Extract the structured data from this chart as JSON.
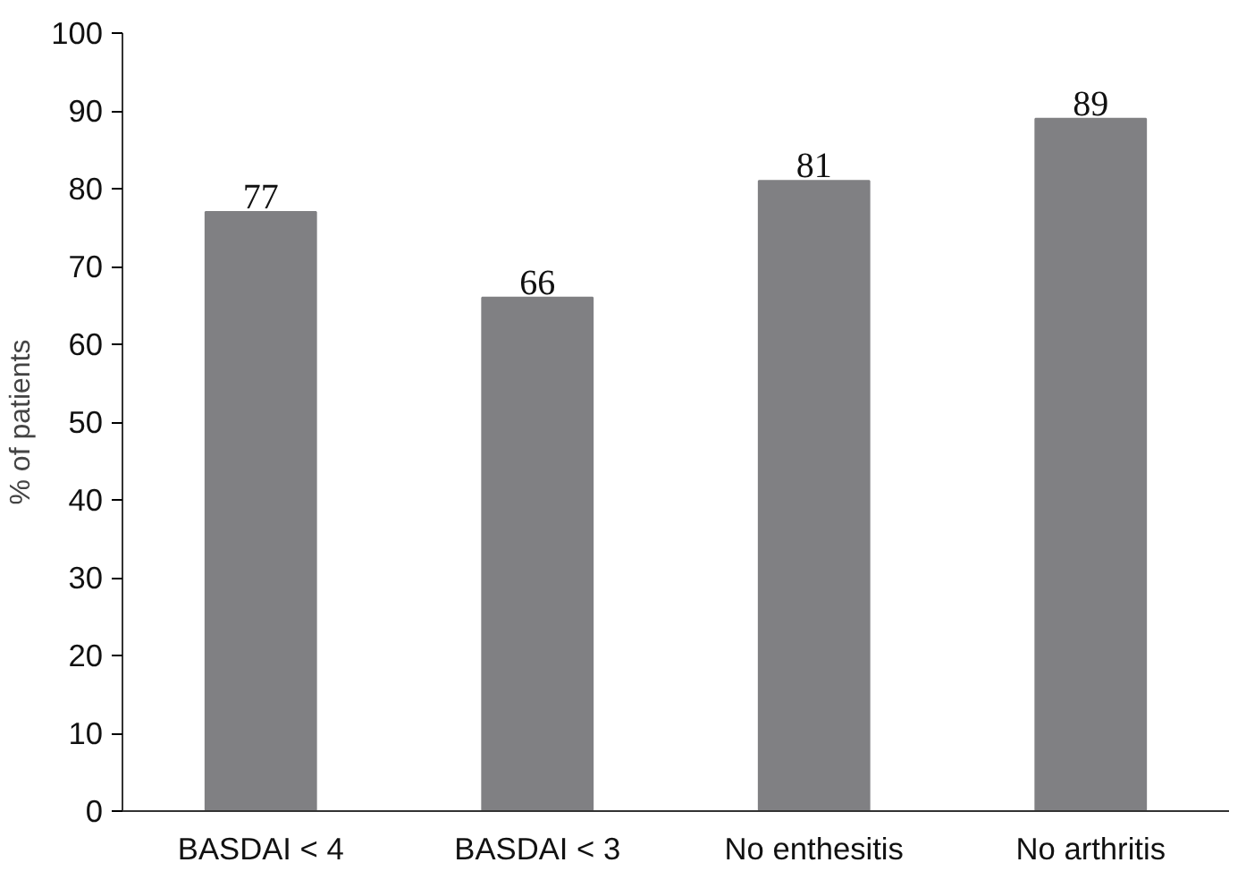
{
  "chart_data": {
    "type": "bar",
    "ylabel": "% of patients",
    "categories": [
      "BASDAI < 4",
      "BASDAI < 3",
      "No enthesitis",
      "No arthritis"
    ],
    "values": [
      77,
      66,
      81,
      89
    ],
    "color": "#808083",
    "ylim": [
      0,
      100
    ],
    "yticks": [
      0,
      10,
      20,
      30,
      40,
      50,
      60,
      70,
      80,
      90,
      100
    ],
    "grid": false,
    "data_labels": true
  }
}
